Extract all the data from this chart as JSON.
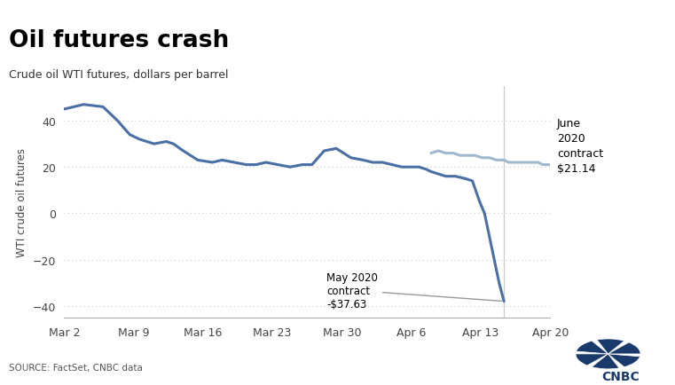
{
  "title": "Oil futures crash",
  "subtitle": "Crude oil WTI futures, dollars per barrel",
  "ylabel": "WTI crude oil futures",
  "source": "SOURCE: FactSet, CNBC data",
  "header_color": "#1a3a6b",
  "line_color_may": "#4a6fa5",
  "line_color_june": "#a0b8ce",
  "ylim": [
    -45,
    55
  ],
  "yticks": [
    -40,
    -20,
    0,
    20,
    40
  ],
  "xtick_labels": [
    "Mar 2",
    "Mar 9",
    "Mar 16",
    "Mar 23",
    "Mar 30",
    "Apr 6",
    "Apr 13",
    "Apr 20"
  ],
  "may_annotation": "May 2020\ncontract\n-$37.63",
  "june_annotation": "June\n2020\ncontract\n$21.14",
  "may_series_x": [
    0,
    0.04,
    0.08,
    0.11,
    0.135,
    0.155,
    0.185,
    0.21,
    0.225,
    0.245,
    0.275,
    0.305,
    0.325,
    0.35,
    0.375,
    0.395,
    0.415,
    0.44,
    0.465,
    0.49,
    0.51,
    0.535,
    0.56,
    0.575,
    0.59,
    0.615,
    0.635,
    0.655,
    0.675,
    0.695,
    0.715,
    0.73,
    0.745,
    0.755,
    0.77,
    0.785,
    0.805,
    0.825,
    0.84,
    0.855,
    0.865,
    0.875,
    0.885,
    0.895,
    0.905
  ],
  "may_series_y": [
    45,
    47,
    46,
    40,
    34,
    32,
    30,
    31,
    30,
    27,
    23,
    22,
    23,
    22,
    21,
    21,
    22,
    21,
    20,
    21,
    21,
    27,
    28,
    26,
    24,
    23,
    22,
    22,
    21,
    20,
    20,
    20,
    19,
    18,
    17,
    16,
    16,
    15,
    14,
    5,
    0,
    -10,
    -20,
    -30,
    -38
  ],
  "june_series_x": [
    0.755,
    0.77,
    0.785,
    0.8,
    0.815,
    0.83,
    0.845,
    0.86,
    0.875,
    0.89,
    0.905,
    0.915,
    0.925,
    0.935,
    0.945,
    0.955,
    0.965,
    0.975,
    0.985,
    1.0
  ],
  "june_series_y": [
    26,
    27,
    26,
    26,
    25,
    25,
    25,
    24,
    24,
    23,
    23,
    22,
    22,
    22,
    22,
    22,
    22,
    22,
    21,
    21
  ]
}
